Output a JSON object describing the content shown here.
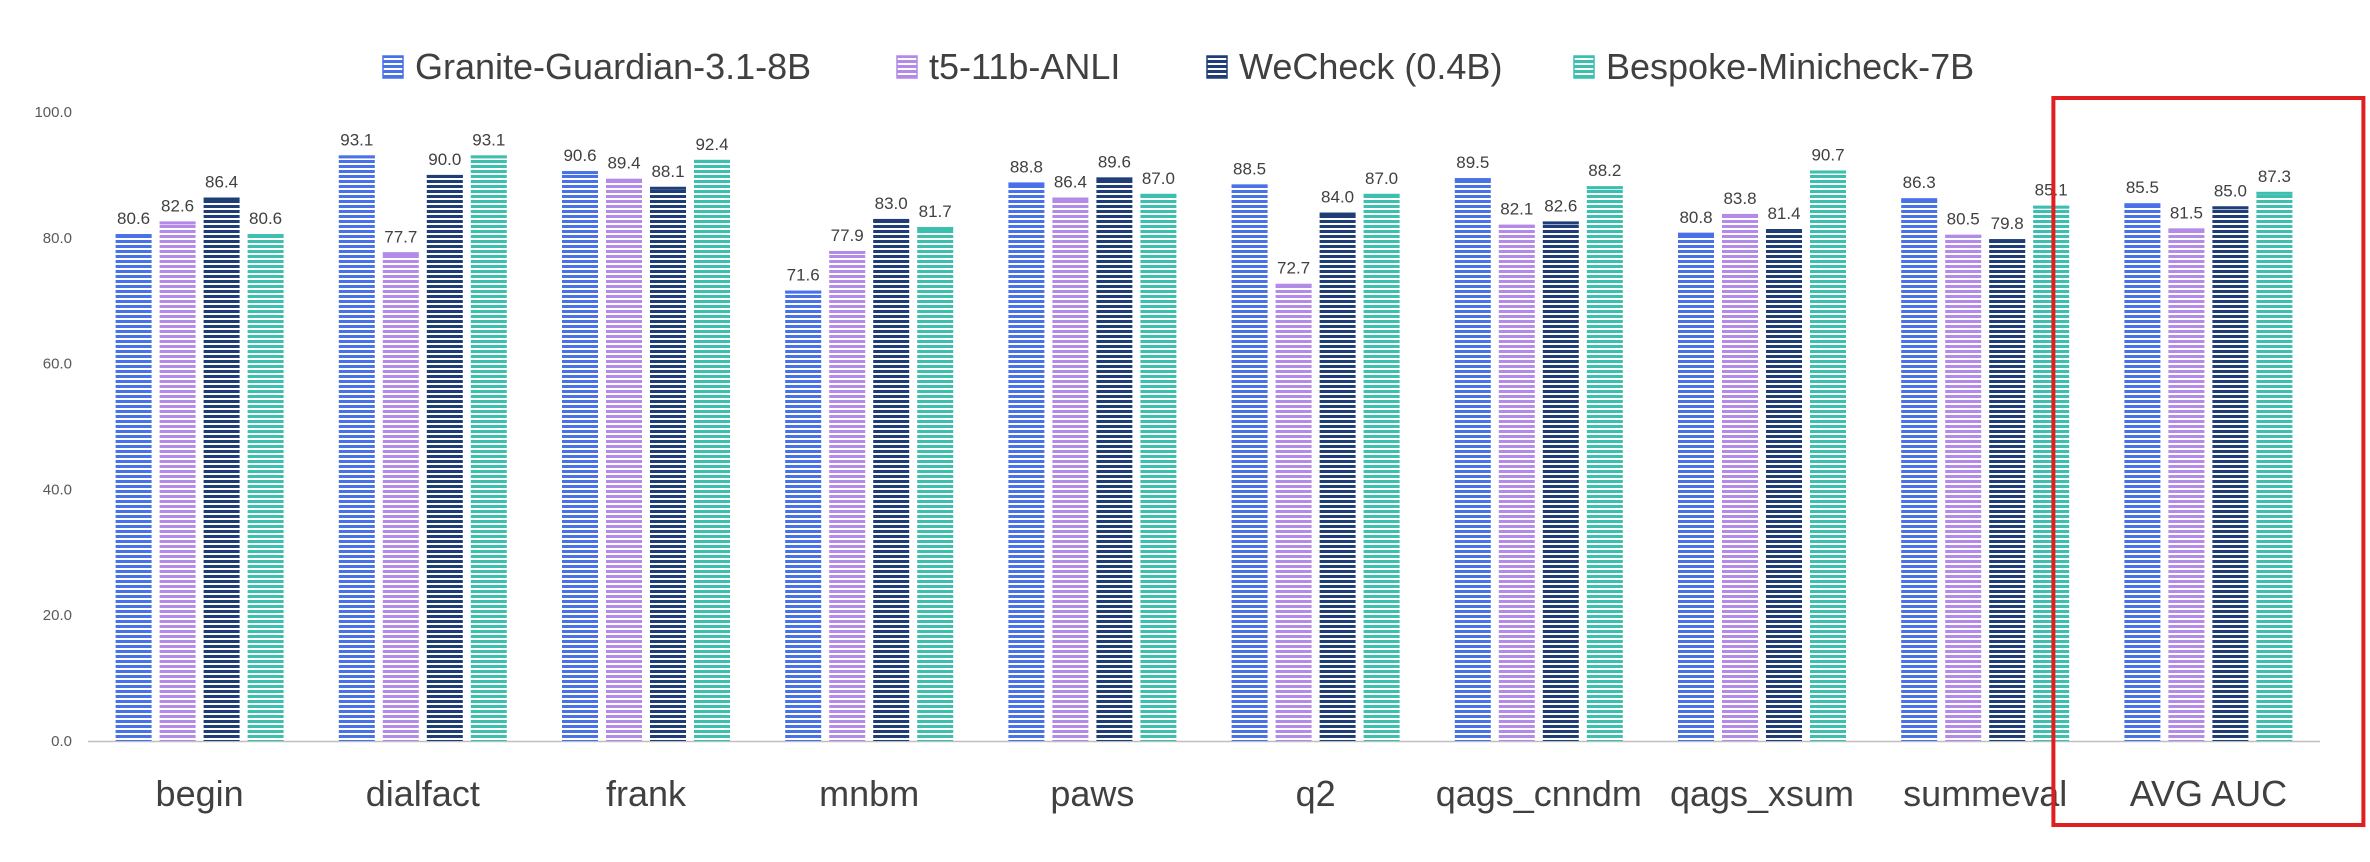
{
  "chart_data": {
    "type": "bar",
    "categories": [
      "begin",
      "dialfact",
      "frank",
      "mnbm",
      "paws",
      "q2",
      "qags_cnndm",
      "qags_xsum",
      "summeval",
      "AVG AUC"
    ],
    "series": [
      {
        "name": "Granite-Guardian-3.1-8B",
        "color": "#4a72e8",
        "values": [
          80.6,
          93.1,
          90.6,
          71.6,
          88.8,
          88.5,
          89.5,
          80.8,
          86.3,
          85.5
        ]
      },
      {
        "name": "t5-11b-ANLI",
        "color": "#b48ae8",
        "values": [
          82.6,
          77.7,
          89.4,
          77.9,
          86.4,
          72.7,
          82.1,
          83.8,
          80.5,
          81.5
        ]
      },
      {
        "name": "WeCheck (0.4B)",
        "color": "#1f3e78",
        "values": [
          86.4,
          90.0,
          88.1,
          83.0,
          89.6,
          84.0,
          82.6,
          81.4,
          79.8,
          85.0
        ]
      },
      {
        "name": "Bespoke-Minicheck-7B",
        "color": "#3dbfb0",
        "values": [
          80.6,
          93.1,
          92.4,
          81.7,
          87.0,
          87.0,
          88.2,
          90.7,
          85.1,
          87.3
        ]
      }
    ],
    "ylim": [
      0,
      100
    ],
    "yticks": [
      "0.0",
      "20.0",
      "40.0",
      "60.0",
      "80.0",
      "100.0"
    ],
    "legend_position": "top",
    "grid": false,
    "highlight": {
      "category": "AVG AUC",
      "color": "#e02020"
    }
  }
}
